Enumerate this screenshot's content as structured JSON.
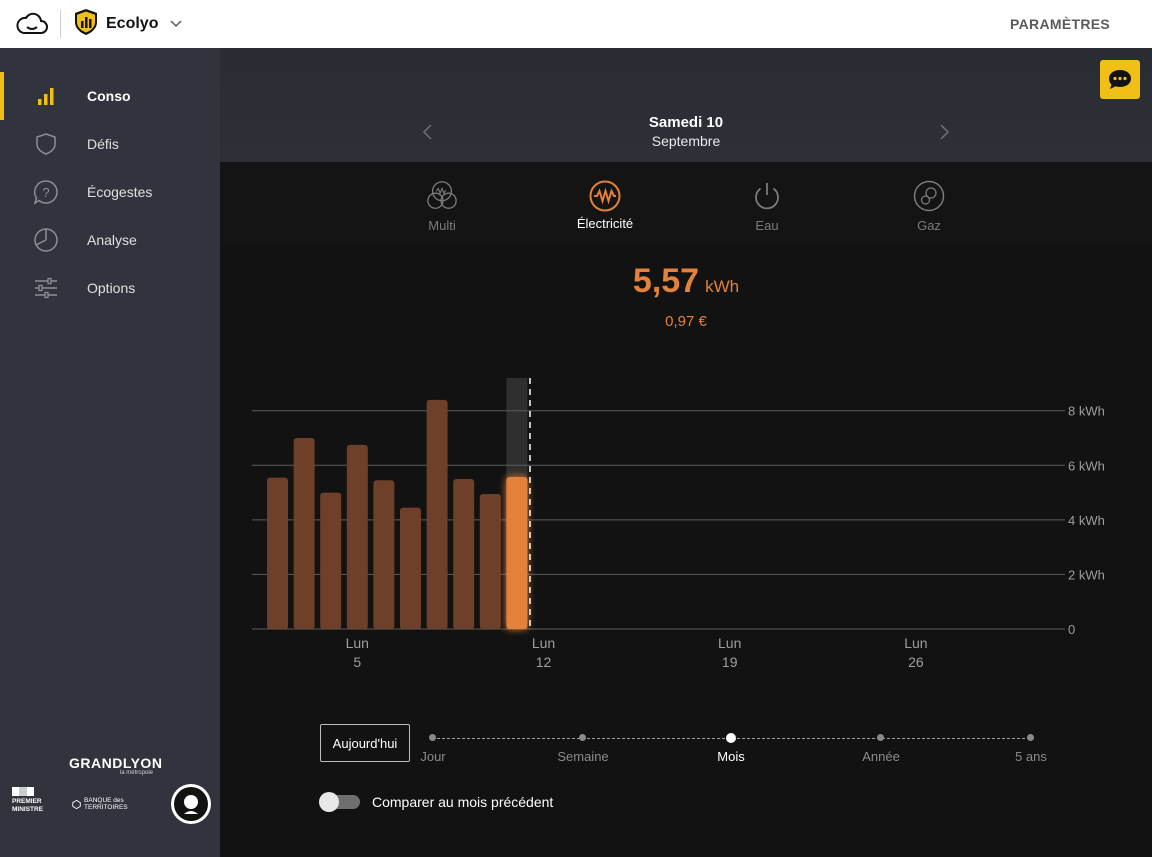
{
  "topbar": {
    "cloud_icon": "cloud-icon",
    "brand_icon": "ecolyo-shield-icon",
    "brand_name": "Ecolyo",
    "settings_label": "PARAMÈTRES"
  },
  "sidebar": {
    "items": [
      {
        "label": "Conso",
        "icon": "bar-chart-icon",
        "active": true
      },
      {
        "label": "Défis",
        "icon": "shield-icon",
        "active": false
      },
      {
        "label": "Écogestes",
        "icon": "question-bubble-icon",
        "active": false
      },
      {
        "label": "Analyse",
        "icon": "pie-chart-icon",
        "active": false
      },
      {
        "label": "Options",
        "icon": "sliders-icon",
        "active": false
      }
    ],
    "grandlyon": {
      "title": "GRANDLYON",
      "subtitle": "la métropole"
    },
    "partners": {
      "premier_ministre": "PREMIER MINISTRE",
      "banque_territoires": "BANQUE des TERRITOIRES",
      "investir": "INVESTIR L'AVENIR"
    }
  },
  "header": {
    "day": "Samedi 10",
    "month": "Septembre"
  },
  "fluids": [
    {
      "label": "Multi",
      "icon": "multi-fluid-icon",
      "active": false
    },
    {
      "label": "Électricité",
      "icon": "electricity-icon",
      "active": true
    },
    {
      "label": "Eau",
      "icon": "power-icon",
      "active": false
    },
    {
      "label": "Gaz",
      "icon": "gas-icon",
      "active": false
    }
  ],
  "consumption": {
    "value": "5,57",
    "unit": "kWh",
    "price": "0,97 €"
  },
  "chart_data": {
    "type": "bar",
    "x_ticks": [
      {
        "day_name": "Lun",
        "day": "5",
        "index": 4
      },
      {
        "day_name": "Lun",
        "day": "12",
        "index": 11
      },
      {
        "day_name": "Lun",
        "day": "19",
        "index": 18
      },
      {
        "day_name": "Lun",
        "day": "26",
        "index": 25
      }
    ],
    "y_ticks": [
      "8 kWh",
      "6 kWh",
      "4 kWh",
      "2 kWh",
      "0"
    ],
    "y_tick_values": [
      8,
      6,
      4,
      2,
      0
    ],
    "ylim": [
      0,
      9.2
    ],
    "days_in_month": 30,
    "series": [
      {
        "values": [
          5.55,
          7.0,
          5.0,
          6.75,
          5.45,
          4.45,
          8.4,
          5.5,
          4.95,
          5.57
        ]
      }
    ],
    "selected_index": 9,
    "today_marker_index": 10,
    "colors": {
      "bar": "#6e3f29",
      "selected": "#e3813a",
      "highlight": "#2f2f2f",
      "grid": "#5c5c5c"
    }
  },
  "timestep": {
    "today_label": "Aujourd'hui",
    "steps": [
      {
        "label": "Jour",
        "active": false
      },
      {
        "label": "Semaine",
        "active": false
      },
      {
        "label": "Mois",
        "active": true
      },
      {
        "label": "Année",
        "active": false
      },
      {
        "label": "5 ans",
        "active": false
      }
    ]
  },
  "compare": {
    "label": "Comparer au mois précédent",
    "enabled": false
  }
}
